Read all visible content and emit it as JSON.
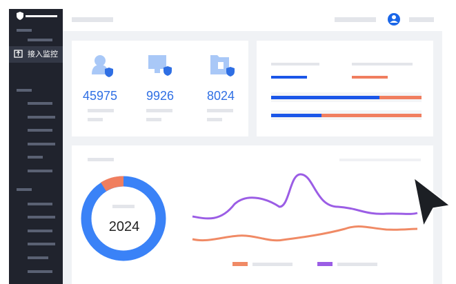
{
  "sidebar": {
    "active_item": "接入监控"
  },
  "stats": [
    {
      "value": "45975"
    },
    {
      "value": "9926"
    },
    {
      "value": "8024"
    }
  ],
  "donut": {
    "label": "2024"
  }
}
